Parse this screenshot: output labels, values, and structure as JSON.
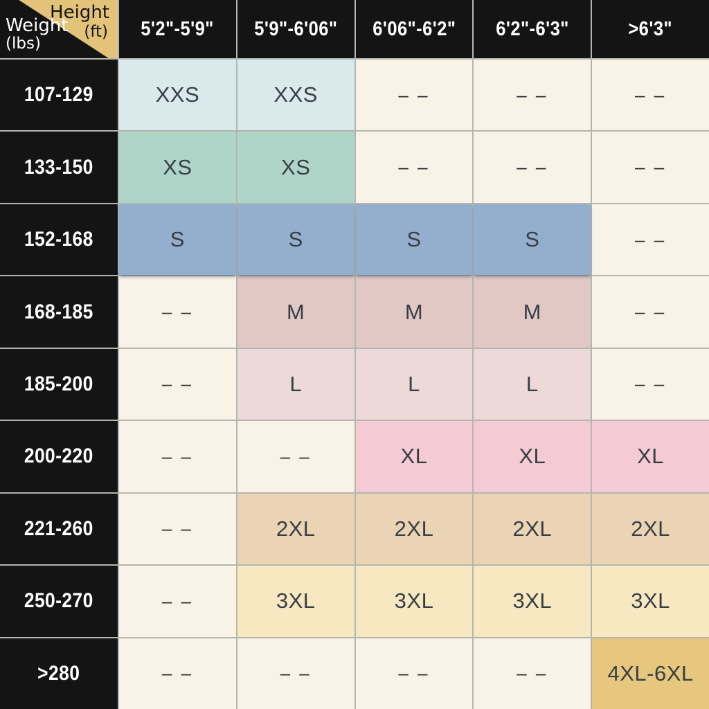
{
  "chart_data": {
    "type": "table",
    "corner": {
      "height_label": "Height",
      "height_unit": "(ft)",
      "weight_label": "Weight",
      "weight_unit": "(lbs)"
    },
    "columns": [
      "5'2\"-5'9\"",
      "5'9\"-6'06\"",
      "6'06\"-6'2\"",
      "6'2\"-6'3\"",
      ">6'3\""
    ],
    "empty_marker": "– –",
    "rows": [
      {
        "weight": "107-129",
        "cells": [
          {
            "size": "XXS",
            "type": "xxs"
          },
          {
            "size": "XXS",
            "type": "xxs"
          },
          {
            "size": "",
            "type": "empty"
          },
          {
            "size": "",
            "type": "empty"
          },
          {
            "size": "",
            "type": "empty"
          }
        ]
      },
      {
        "weight": "133-150",
        "cells": [
          {
            "size": "XS",
            "type": "xs"
          },
          {
            "size": "XS",
            "type": "xs"
          },
          {
            "size": "",
            "type": "empty"
          },
          {
            "size": "",
            "type": "empty"
          },
          {
            "size": "",
            "type": "empty"
          }
        ]
      },
      {
        "weight": "152-168",
        "cells": [
          {
            "size": "S",
            "type": "s"
          },
          {
            "size": "S",
            "type": "s"
          },
          {
            "size": "S",
            "type": "s"
          },
          {
            "size": "S",
            "type": "s"
          },
          {
            "size": "",
            "type": "empty"
          }
        ]
      },
      {
        "weight": "168-185",
        "cells": [
          {
            "size": "",
            "type": "empty"
          },
          {
            "size": "M",
            "type": "m"
          },
          {
            "size": "M",
            "type": "m"
          },
          {
            "size": "M",
            "type": "m"
          },
          {
            "size": "",
            "type": "empty"
          }
        ]
      },
      {
        "weight": "185-200",
        "cells": [
          {
            "size": "",
            "type": "empty"
          },
          {
            "size": "L",
            "type": "l"
          },
          {
            "size": "L",
            "type": "l"
          },
          {
            "size": "L",
            "type": "l"
          },
          {
            "size": "",
            "type": "empty"
          }
        ]
      },
      {
        "weight": "200-220",
        "cells": [
          {
            "size": "",
            "type": "empty"
          },
          {
            "size": "",
            "type": "empty"
          },
          {
            "size": "XL",
            "type": "xl"
          },
          {
            "size": "XL",
            "type": "xl"
          },
          {
            "size": "XL",
            "type": "xl"
          }
        ]
      },
      {
        "weight": "221-260",
        "cells": [
          {
            "size": "",
            "type": "empty"
          },
          {
            "size": "2XL",
            "type": "xl2"
          },
          {
            "size": "2XL",
            "type": "xl2"
          },
          {
            "size": "2XL",
            "type": "xl2"
          },
          {
            "size": "2XL",
            "type": "xl2"
          }
        ]
      },
      {
        "weight": "250-270",
        "cells": [
          {
            "size": "",
            "type": "empty"
          },
          {
            "size": "3XL",
            "type": "xl3"
          },
          {
            "size": "3XL",
            "type": "xl3"
          },
          {
            "size": "3XL",
            "type": "xl3"
          },
          {
            "size": "3XL",
            "type": "xl3"
          }
        ]
      },
      {
        "weight": ">280",
        "cells": [
          {
            "size": "",
            "type": "empty"
          },
          {
            "size": "",
            "type": "empty"
          },
          {
            "size": "",
            "type": "empty"
          },
          {
            "size": "",
            "type": "empty"
          },
          {
            "size": "4XL-6XL",
            "type": "xl4"
          }
        ]
      }
    ]
  },
  "colors": {
    "xxs": "#d9e9ec",
    "xs": "#afd5c8",
    "s": "#94afcd",
    "m": "#e2c8c5",
    "l": "#eddad8",
    "xl": "#f4cbd4",
    "xl2": "#ead4b4",
    "xl3": "#f8e8c2",
    "xl4": "#e7c67e",
    "empty": "#f9f3e7",
    "header_bg": "#141414",
    "corner_gold": "#e3c279",
    "grid_line": "#b3b6b0",
    "cell_text": "#373f45",
    "header_text": "#ffffff"
  }
}
